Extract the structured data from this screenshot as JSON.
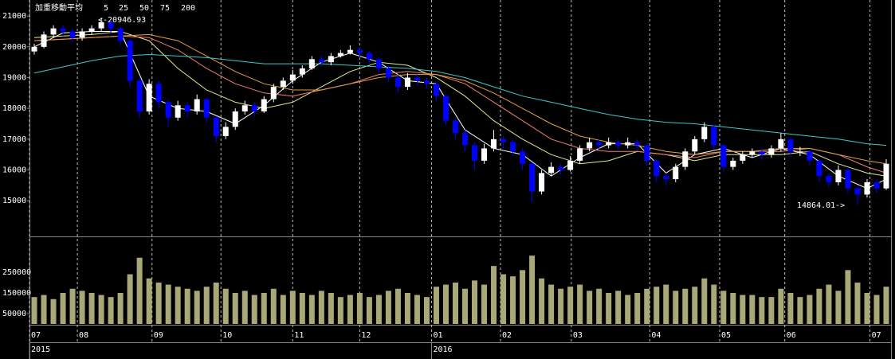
{
  "chart_data": {
    "type": "candlestick",
    "legend_title": "加重移動平均",
    "annotations": [
      {
        "text": "<-20946.93",
        "color": "#ffffff"
      },
      {
        "text": "14864.01->",
        "color": "#3838ff"
      }
    ],
    "up_color": "#ffffff",
    "down_color": "#0000ff",
    "volume_color": "#a8a878",
    "xlim": [
      -0.5,
      89.5
    ],
    "xticks": [
      {
        "value": -0.5,
        "label": "07"
      },
      {
        "value": 4.5,
        "label": "08"
      },
      {
        "value": 12.3,
        "label": "09"
      },
      {
        "value": 19.5,
        "label": "10"
      },
      {
        "value": 27,
        "label": "11"
      },
      {
        "value": 34,
        "label": "12"
      },
      {
        "value": 41.5,
        "label": "01"
      },
      {
        "value": 48.7,
        "label": "02"
      },
      {
        "value": 56.1,
        "label": "03"
      },
      {
        "value": 64.3,
        "label": "04"
      },
      {
        "value": 71.6,
        "label": "05"
      },
      {
        "value": 78.4,
        "label": "06"
      },
      {
        "value": 87.3,
        "label": "07"
      }
    ],
    "year_ticks": [
      {
        "value": -0.5,
        "label": "2015"
      },
      {
        "value": 41.5,
        "label": "2016"
      }
    ],
    "ylim": [
      13840,
      21470
    ],
    "yticks": [
      15000,
      16000,
      17000,
      18000,
      19000,
      20000,
      21000
    ],
    "volume_ylim": [
      0,
      415000
    ],
    "volume_yticks": [
      50000,
      150000,
      250000
    ],
    "open": [
      19850,
      20000,
      20400,
      20600,
      20500,
      20300,
      20500,
      20600,
      20800,
      20600,
      20200,
      18900,
      17900,
      18800,
      18200,
      17700,
      18100,
      17900,
      18300,
      17700,
      17100,
      17400,
      17900,
      18100,
      17900,
      18300,
      18700,
      18900,
      19100,
      19300,
      19600,
      19500,
      19700,
      19800,
      19900,
      19800,
      19600,
      19300,
      19000,
      18700,
      19000,
      18900,
      18800,
      18400,
      17600,
      17200,
      16800,
      16300,
      16700,
      17000,
      16900,
      16600,
      16200,
      15300,
      15900,
      16100,
      16000,
      16300,
      16700,
      16900,
      16800,
      16900,
      16800,
      16900,
      16800,
      16300,
      15800,
      15700,
      16100,
      16600,
      17000,
      17400,
      16800,
      16100,
      16300,
      16500,
      16600,
      16500,
      16700,
      17000,
      16600,
      16600,
      16300,
      15800,
      15600,
      16000,
      15400,
      15200,
      15600,
      15400
    ],
    "high": [
      20100,
      20500,
      20700,
      20700,
      20600,
      20600,
      20700,
      20946.93,
      20850,
      20650,
      20250,
      19000,
      18950,
      18900,
      18300,
      18250,
      18200,
      18450,
      18350,
      17750,
      17550,
      18000,
      18250,
      18200,
      18400,
      18800,
      19000,
      19250,
      19400,
      19700,
      19700,
      19800,
      19900,
      20050,
      20000,
      19850,
      19650,
      19400,
      19100,
      19150,
      19100,
      19000,
      18850,
      18450,
      17700,
      17300,
      16900,
      16850,
      17300,
      17100,
      17000,
      16700,
      16250,
      16000,
      16250,
      16200,
      16450,
      16800,
      17050,
      17000,
      17050,
      17000,
      17050,
      17000,
      16850,
      16350,
      15900,
      16200,
      16700,
      17100,
      17550,
      17450,
      16850,
      16400,
      16600,
      16700,
      16700,
      16800,
      17200,
      17050,
      16750,
      16650,
      16350,
      15900,
      16150,
      16050,
      15500,
      15700,
      15700,
      16350
    ],
    "low": [
      19750,
      19950,
      20300,
      20350,
      20150,
      20200,
      20400,
      20500,
      20450,
      20050,
      18700,
      17700,
      17800,
      18000,
      17400,
      17600,
      17700,
      17800,
      17550,
      16900,
      17000,
      17300,
      17800,
      17750,
      17850,
      18200,
      18600,
      18800,
      19000,
      19250,
      19350,
      19400,
      19650,
      19750,
      19650,
      19450,
      19150,
      18850,
      18500,
      18600,
      18750,
      18650,
      18250,
      17450,
      17000,
      16600,
      16000,
      16200,
      16600,
      16700,
      16450,
      16000,
      14950,
      15200,
      15800,
      15850,
      15950,
      16200,
      16600,
      16650,
      16700,
      16650,
      16700,
      16650,
      16150,
      15600,
      15500,
      15600,
      16000,
      16500,
      16900,
      16650,
      15950,
      16000,
      16200,
      16400,
      16350,
      16400,
      16600,
      16450,
      16450,
      16150,
      15600,
      15450,
      15500,
      15250,
      14864.01,
      15100,
      15250,
      15350
    ],
    "close": [
      20000,
      20400,
      20600,
      20500,
      20300,
      20500,
      20600,
      20800,
      20600,
      20200,
      18900,
      17900,
      18800,
      18200,
      17700,
      18100,
      17900,
      18300,
      17700,
      17100,
      17400,
      17900,
      18100,
      17900,
      18300,
      18700,
      18900,
      19100,
      19300,
      19600,
      19500,
      19700,
      19800,
      19900,
      19800,
      19600,
      19300,
      19000,
      18700,
      19000,
      18900,
      18800,
      18400,
      17600,
      17200,
      16800,
      16300,
      16700,
      17000,
      16900,
      16600,
      16200,
      15300,
      15900,
      16100,
      16000,
      16300,
      16700,
      16900,
      16800,
      16900,
      16800,
      16900,
      16800,
      16300,
      15800,
      15700,
      16100,
      16600,
      17000,
      17400,
      16800,
      16100,
      16300,
      16500,
      16600,
      16500,
      16700,
      17000,
      16600,
      16600,
      16300,
      15800,
      15600,
      16000,
      15400,
      15200,
      15600,
      15400,
      16200
    ],
    "volume": [
      130000,
      140000,
      120000,
      150000,
      170000,
      160000,
      150000,
      140000,
      130000,
      150000,
      240000,
      320000,
      220000,
      200000,
      190000,
      180000,
      170000,
      160000,
      180000,
      200000,
      170000,
      150000,
      160000,
      140000,
      150000,
      170000,
      140000,
      160000,
      150000,
      140000,
      160000,
      150000,
      130000,
      140000,
      150000,
      130000,
      140000,
      160000,
      170000,
      150000,
      140000,
      130000,
      180000,
      190000,
      200000,
      170000,
      210000,
      190000,
      280000,
      240000,
      230000,
      260000,
      330000,
      220000,
      190000,
      170000,
      180000,
      190000,
      160000,
      170000,
      150000,
      160000,
      140000,
      150000,
      170000,
      180000,
      190000,
      160000,
      170000,
      180000,
      220000,
      190000,
      160000,
      150000,
      140000,
      140000,
      130000,
      130000,
      170000,
      150000,
      130000,
      140000,
      170000,
      190000,
      160000,
      260000,
      200000,
      150000,
      140000,
      180000
    ],
    "ma_x": [
      0,
      3,
      6,
      9,
      12,
      15,
      18,
      21,
      24,
      27,
      30,
      33,
      36,
      39,
      42,
      45,
      48,
      51,
      54,
      57,
      60,
      63,
      66,
      69,
      72,
      75,
      78,
      81,
      84,
      87,
      89
    ],
    "series": [
      {
        "name": "5",
        "color": "#ffffff",
        "values": [
          20000,
          20450,
          20500,
          20500,
          18400,
          18000,
          17900,
          17500,
          18100,
          18900,
          19500,
          19800,
          19500,
          18900,
          18800,
          17300,
          16700,
          16500,
          15800,
          16400,
          16850,
          16850,
          15900,
          16500,
          16700,
          16400,
          16700,
          16500,
          15800,
          15400,
          15700
        ]
      },
      {
        "name": "25",
        "color": "#e8e890",
        "values": [
          20300,
          20350,
          20400,
          20500,
          20200,
          19300,
          18600,
          18200,
          18000,
          18200,
          18700,
          19200,
          19500,
          19400,
          19000,
          18400,
          17600,
          17000,
          16500,
          16200,
          16300,
          16600,
          16500,
          16300,
          16500,
          16500,
          16500,
          16600,
          16200,
          15900,
          15800
        ]
      },
      {
        "name": "50",
        "color": "#f08070",
        "values": [
          20200,
          20250,
          20300,
          20350,
          20300,
          19900,
          19300,
          18800,
          18500,
          18400,
          18600,
          18800,
          19100,
          19200,
          19100,
          18800,
          18200,
          17600,
          17000,
          16700,
          16600,
          16600,
          16500,
          16400,
          16600,
          16600,
          16600,
          16700,
          16500,
          16100,
          15900
        ]
      },
      {
        "name": "75",
        "color": "#e0a040",
        "values": [
          20200,
          20250,
          20300,
          20350,
          20400,
          20200,
          19700,
          19200,
          18800,
          18600,
          18600,
          18800,
          19000,
          19100,
          19100,
          18900,
          18500,
          18000,
          17500,
          17100,
          16900,
          16800,
          16600,
          16500,
          16600,
          16600,
          16700,
          16700,
          16500,
          16300,
          16200
        ]
      },
      {
        "name": "200",
        "color": "#40c8c8",
        "values": [
          19150,
          19350,
          19550,
          19700,
          19750,
          19700,
          19650,
          19550,
          19450,
          19450,
          19450,
          19400,
          19350,
          19300,
          19200,
          19000,
          18700,
          18400,
          18200,
          18000,
          17800,
          17650,
          17550,
          17500,
          17400,
          17300,
          17200,
          17100,
          17000,
          16850,
          16800
        ]
      }
    ]
  }
}
